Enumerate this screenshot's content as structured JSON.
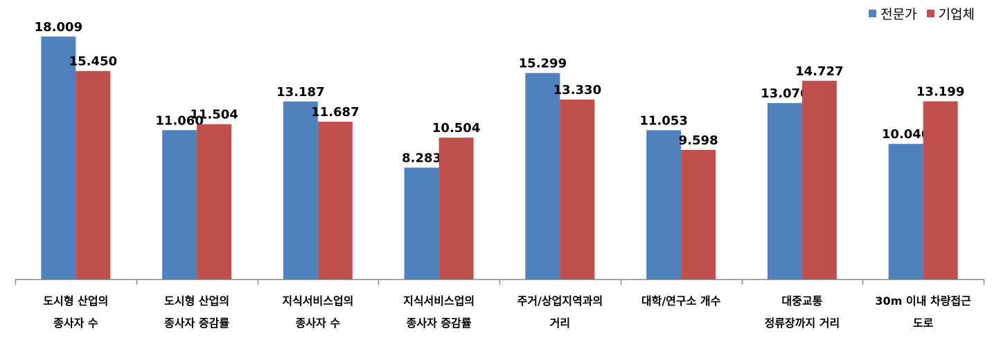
{
  "chart_data": {
    "type": "bar",
    "categories": [
      [
        "도시형 산업의",
        "종사자 수"
      ],
      [
        "도시형 산업의",
        "종사자 증감률"
      ],
      [
        "지식서비스업의",
        "종사자 수"
      ],
      [
        "지식서비스업의",
        "종사자 증감률"
      ],
      [
        "주거/상업지역과의",
        "거리"
      ],
      [
        "대학/연구소 개수"
      ],
      [
        "대중교통",
        "정류장까지 거리"
      ],
      [
        "30m 이내 차량접근",
        "도로"
      ]
    ],
    "series": [
      {
        "name": "전문가",
        "color": "#4F81BD",
        "values": [
          18.009,
          11.06,
          13.187,
          8.283,
          15.299,
          11.053,
          13.07,
          10.04
        ],
        "labels": [
          "18.009",
          "11.060",
          "13.187",
          "8.283",
          "15.299",
          "11.053",
          "13.070",
          "10.040"
        ]
      },
      {
        "name": "기업체",
        "color": "#C0504D",
        "values": [
          15.45,
          11.504,
          11.687,
          10.504,
          13.33,
          9.598,
          14.727,
          13.199
        ],
        "labels": [
          "15.450",
          "11.504",
          "11.687",
          "10.504",
          "13.330",
          "9.598",
          "14.727",
          "13.199"
        ]
      }
    ],
    "ylim": [
      0,
      19.5
    ],
    "grid": false,
    "legend": "top-right"
  }
}
